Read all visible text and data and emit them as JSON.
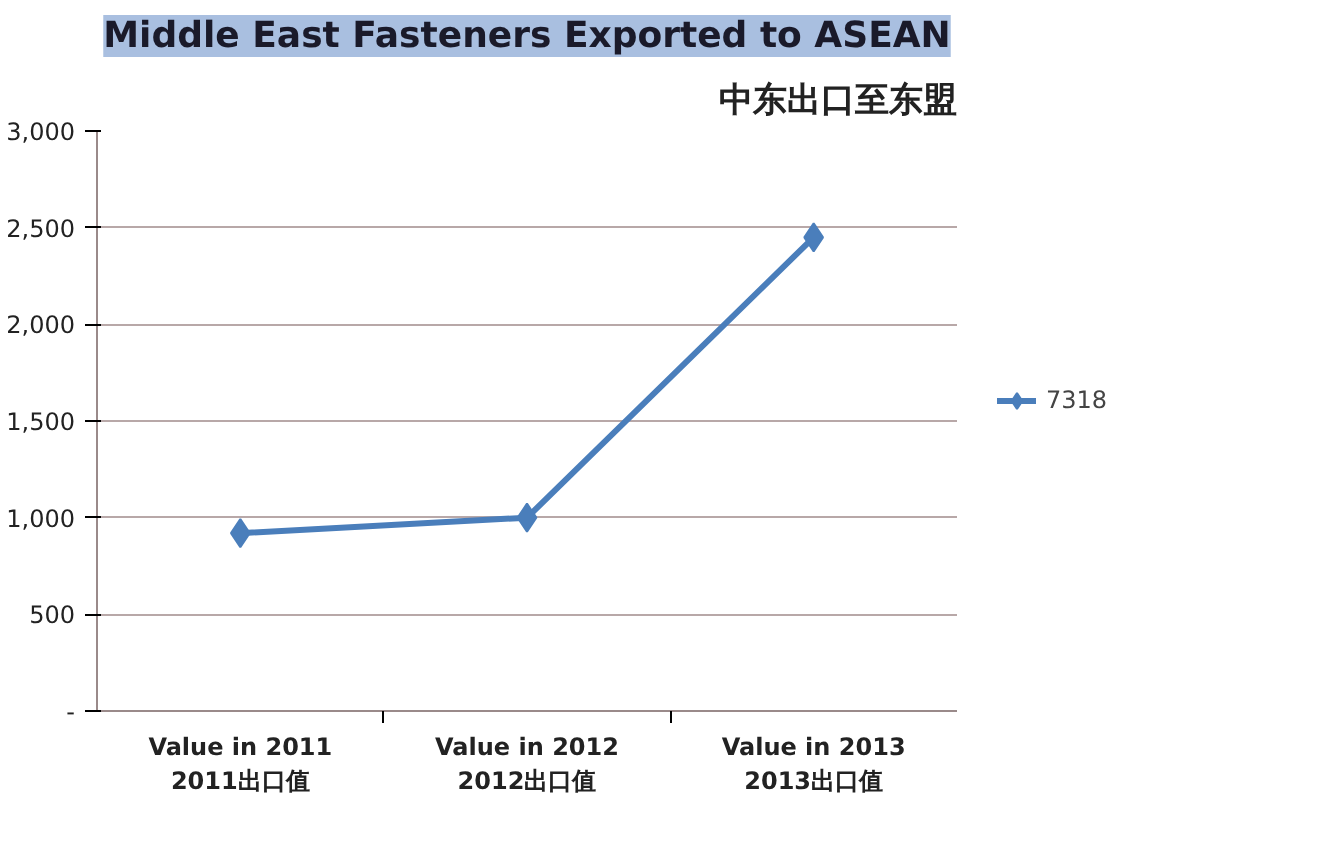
{
  "chart_data": {
    "type": "line",
    "title": "Middle East Fasteners Exported to ASEAN",
    "subtitle": "中东出口至东盟",
    "categories": [
      "Value in 2011\n2011出口值",
      "Value in 2012\n2012出口值",
      "Value in 2013\n2013出口值"
    ],
    "series": [
      {
        "name": "7318",
        "color": "#4a7ebb",
        "values": [
          920,
          1000,
          2450
        ]
      }
    ],
    "ylim": [
      0,
      3000
    ],
    "yticks": [
      {
        "value": 0,
        "label": "-"
      },
      {
        "value": 500,
        "label": "500"
      },
      {
        "value": 1000,
        "label": "1,000"
      },
      {
        "value": 1500,
        "label": "1,500"
      },
      {
        "value": 2000,
        "label": "2,000"
      },
      {
        "value": 2500,
        "label": "2,500"
      },
      {
        "value": 3000,
        "label": "3,000"
      }
    ],
    "grid": "y",
    "legend": "right",
    "marker": "diamond",
    "line_style": "solid"
  }
}
